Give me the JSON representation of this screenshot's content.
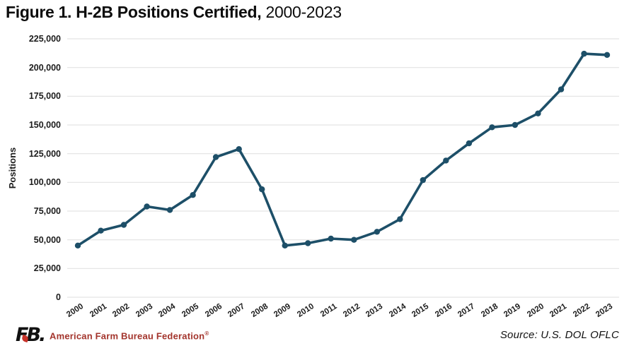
{
  "title": {
    "bold": "Figure 1. H-2B Positions Certified,",
    "regular": " 2000-2023"
  },
  "chart_data": {
    "type": "line",
    "title": "Figure 1. H-2B Positions Certified, 2000-2023",
    "categories": [
      "2000",
      "2001",
      "2002",
      "2003",
      "2004",
      "2005",
      "2006",
      "2007",
      "2008",
      "2009",
      "2010",
      "2011",
      "2012",
      "2013",
      "2014",
      "2015",
      "2016",
      "2017",
      "2018",
      "2019",
      "2020",
      "2021",
      "2022",
      "2023"
    ],
    "values": [
      45000,
      58000,
      63000,
      79000,
      76000,
      89000,
      122000,
      129000,
      94000,
      45000,
      47000,
      51000,
      50000,
      57000,
      68000,
      102000,
      119000,
      134000,
      148000,
      150000,
      160000,
      181000,
      212000,
      211000
    ],
    "xlabel": "",
    "ylabel": "Positions",
    "ylim": [
      0,
      225000
    ],
    "ytick_interval": 25000,
    "ytick_labels": [
      "225,000",
      "200,000",
      "175,000",
      "150,000",
      "125,000",
      "100,000",
      "75,000",
      "50,000",
      "25,000",
      "0"
    ],
    "grid": true,
    "legend_position": "none",
    "line_color": "#1d4f68",
    "marker": "circle"
  },
  "footer": {
    "logo_text": "FB.",
    "org_name": "American Farm Bureau Federation",
    "org_trademark": "®",
    "source": "Source: U.S. DOL OFLC"
  },
  "colors": {
    "line": "#1d4f68",
    "grid": "#e3e3e3",
    "org_red": "#a3342c",
    "text": "#1c1c1c"
  }
}
